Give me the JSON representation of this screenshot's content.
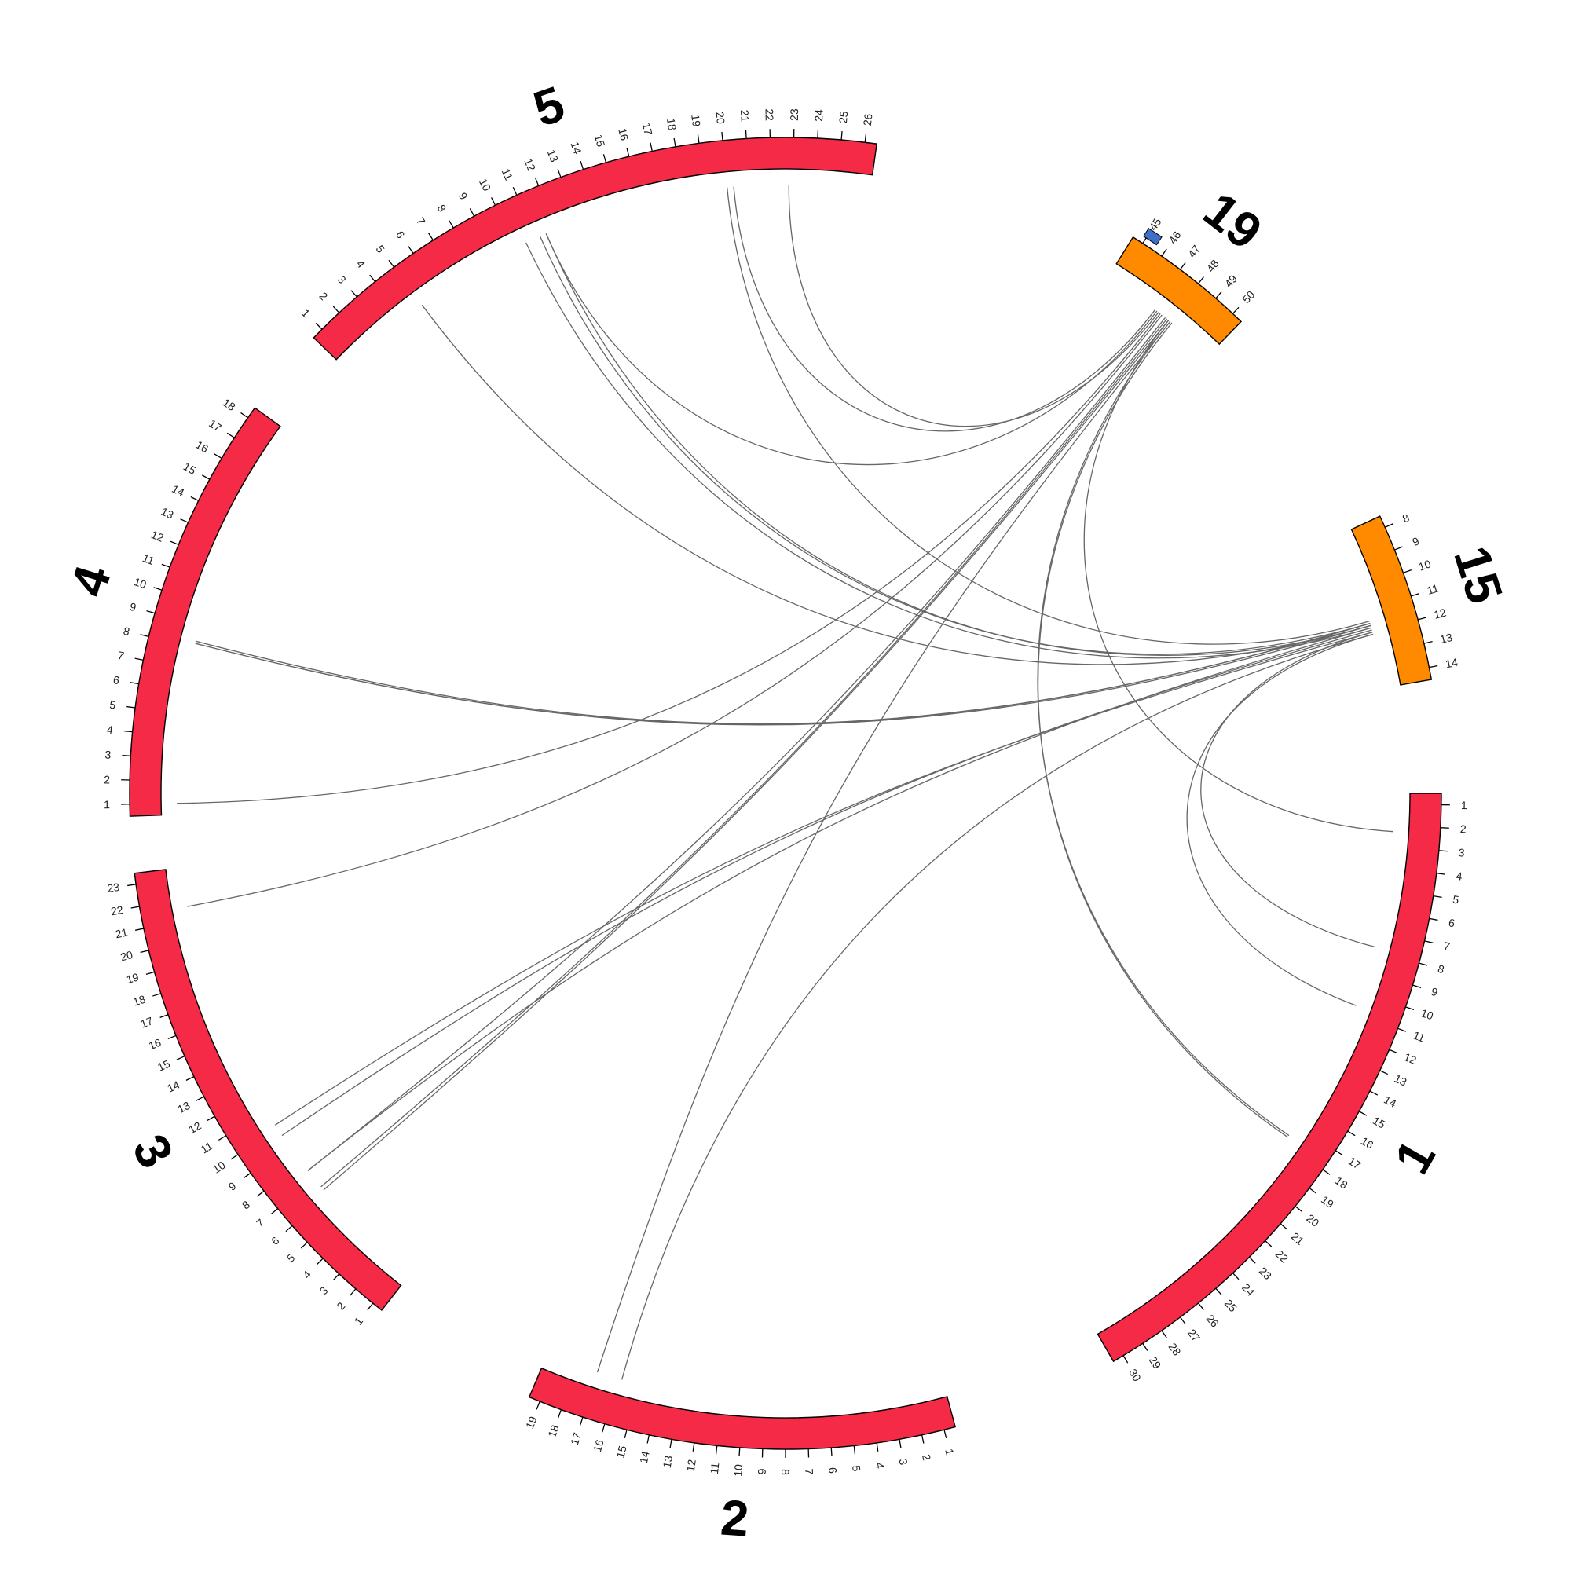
{
  "colors": {
    "primary_chromosome": "#f42a47",
    "secondary_chromosome": "#ff8a00",
    "marker": "#3f6fc7",
    "link": "#666666",
    "outline": "#000000"
  },
  "chromosomes": [
    {
      "id": "1",
      "label": "1",
      "color_key": "primary_chromosome",
      "tick_start": 1,
      "tick_end": 30,
      "start_angle": 90,
      "end_angle": 150
    },
    {
      "id": "2",
      "label": "2",
      "color_key": "primary_chromosome",
      "tick_start": 1,
      "tick_end": 19,
      "start_angle": 165,
      "end_angle": 203
    },
    {
      "id": "3",
      "label": "3",
      "color_key": "primary_chromosome",
      "tick_start": 1,
      "tick_end": 23,
      "start_angle": 218,
      "end_angle": 263
    },
    {
      "id": "4",
      "label": "4",
      "color_key": "primary_chromosome",
      "tick_start": 1,
      "tick_end": 18,
      "start_angle": 268,
      "end_angle": 306
    },
    {
      "id": "5",
      "label": "5",
      "color_key": "primary_chromosome",
      "tick_start": 1,
      "tick_end": 26,
      "start_angle": 314,
      "end_angle": 368
    },
    {
      "id": "19",
      "label": "19",
      "color_key": "secondary_chromosome",
      "tick_start": 45,
      "tick_end": 50,
      "start_angle": 32,
      "end_angle": 44
    },
    {
      "id": "15",
      "label": "15",
      "color_key": "secondary_chromosome",
      "tick_start": 8,
      "tick_end": 14,
      "start_angle": 65,
      "end_angle": 80
    }
  ],
  "markers": [
    {
      "chromosome": "19",
      "position": 45.2,
      "color_key": "marker"
    }
  ],
  "links": [
    {
      "from": {
        "chr": "15",
        "pos": 11.6
      },
      "to": {
        "chr": "4",
        "pos": 8.2
      }
    },
    {
      "from": {
        "chr": "15",
        "pos": 11.7
      },
      "to": {
        "chr": "4",
        "pos": 8.2
      }
    },
    {
      "from": {
        "chr": "15",
        "pos": 11.6
      },
      "to": {
        "chr": "4",
        "pos": 8.3
      }
    },
    {
      "from": {
        "chr": "15",
        "pos": 11.5
      },
      "to": {
        "chr": "5",
        "pos": 20.0
      }
    },
    {
      "from": {
        "chr": "15",
        "pos": 11.6
      },
      "to": {
        "chr": "5",
        "pos": 11.2
      }
    },
    {
      "from": {
        "chr": "15",
        "pos": 11.7
      },
      "to": {
        "chr": "5",
        "pos": 11.5
      }
    },
    {
      "from": {
        "chr": "15",
        "pos": 11.8
      },
      "to": {
        "chr": "5",
        "pos": 10.5
      }
    },
    {
      "from": {
        "chr": "15",
        "pos": 11.7
      },
      "to": {
        "chr": "5",
        "pos": 5.0
      }
    },
    {
      "from": {
        "chr": "15",
        "pos": 11.8
      },
      "to": {
        "chr": "3",
        "pos": 7.5
      }
    },
    {
      "from": {
        "chr": "15",
        "pos": 11.9
      },
      "to": {
        "chr": "3",
        "pos": 9.6
      }
    },
    {
      "from": {
        "chr": "15",
        "pos": 12.0
      },
      "to": {
        "chr": "3",
        "pos": 10.2
      }
    },
    {
      "from": {
        "chr": "15",
        "pos": 12.1
      },
      "to": {
        "chr": "2",
        "pos": 15.8
      }
    },
    {
      "from": {
        "chr": "15",
        "pos": 12.0
      },
      "to": {
        "chr": "1",
        "pos": 7.8
      }
    },
    {
      "from": {
        "chr": "15",
        "pos": 12.1
      },
      "to": {
        "chr": "1",
        "pos": 10.7
      }
    },
    {
      "from": {
        "chr": "19",
        "pos": 47.3
      },
      "to": {
        "chr": "5",
        "pos": 11.5
      }
    },
    {
      "from": {
        "chr": "19",
        "pos": 47.4
      },
      "to": {
        "chr": "5",
        "pos": 22.8
      }
    },
    {
      "from": {
        "chr": "19",
        "pos": 47.2
      },
      "to": {
        "chr": "5",
        "pos": 20.3
      }
    },
    {
      "from": {
        "chr": "19",
        "pos": 47.5
      },
      "to": {
        "chr": "4",
        "pos": 1.0
      }
    },
    {
      "from": {
        "chr": "19",
        "pos": 47.6
      },
      "to": {
        "chr": "3",
        "pos": 21.6
      }
    },
    {
      "from": {
        "chr": "19",
        "pos": 48.0
      },
      "to": {
        "chr": "3",
        "pos": 6.3
      }
    },
    {
      "from": {
        "chr": "19",
        "pos": 47.9
      },
      "to": {
        "chr": "3",
        "pos": 6.5
      }
    },
    {
      "from": {
        "chr": "19",
        "pos": 47.8
      },
      "to": {
        "chr": "3",
        "pos": 7.5
      }
    },
    {
      "from": {
        "chr": "19",
        "pos": 48.1
      },
      "to": {
        "chr": "2",
        "pos": 17.0
      }
    },
    {
      "from": {
        "chr": "19",
        "pos": 48.0
      },
      "to": {
        "chr": "1",
        "pos": 2.3
      }
    },
    {
      "from": {
        "chr": "19",
        "pos": 48.1
      },
      "to": {
        "chr": "1",
        "pos": 17.6
      }
    },
    {
      "from": {
        "chr": "19",
        "pos": 48.2
      },
      "to": {
        "chr": "1",
        "pos": 17.7
      }
    }
  ]
}
